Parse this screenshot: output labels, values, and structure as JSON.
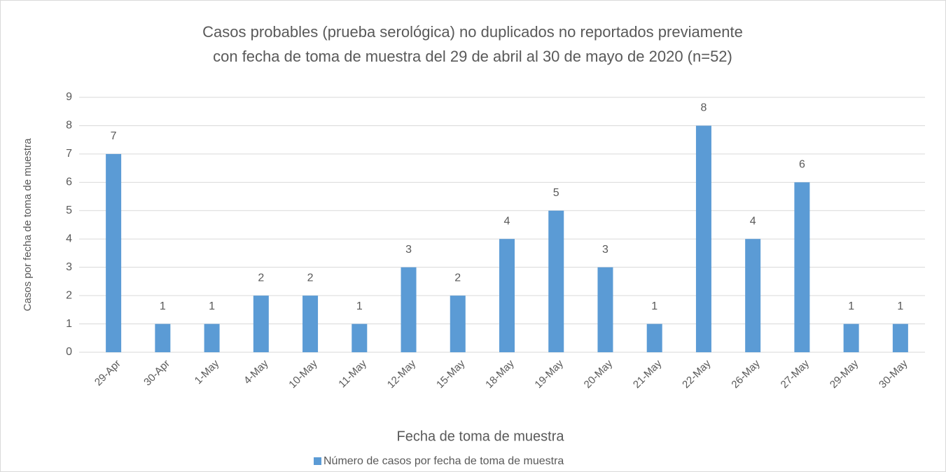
{
  "chart_data": {
    "type": "bar",
    "title": [
      "Casos probables (prueba serológica) no duplicados no reportados previamente",
      "con fecha de toma de muestra del 29 de abril al 30 de mayo de 2020 (n=52)"
    ],
    "x_label": "Fecha de toma de muestra",
    "y_label": "Casos por fecha de toma de muestra",
    "categories": [
      "29-Apr",
      "30-Apr",
      "1-May",
      "4-May",
      "10-May",
      "11-May",
      "12-May",
      "15-May",
      "18-May",
      "19-May",
      "20-May",
      "21-May",
      "22-May",
      "26-May",
      "27-May",
      "29-May",
      "30-May"
    ],
    "series": [
      {
        "name": "Número de casos por fecha de toma de muestra",
        "color": "#5b9bd5",
        "values": [
          7,
          1,
          1,
          2,
          2,
          1,
          3,
          2,
          4,
          5,
          3,
          1,
          8,
          4,
          6,
          1,
          1
        ]
      }
    ],
    "ylim": [
      0,
      9
    ],
    "yticks": [
      0,
      1,
      2,
      3,
      4,
      5,
      6,
      7,
      8,
      9
    ],
    "grid": true,
    "legend": "bottom"
  }
}
